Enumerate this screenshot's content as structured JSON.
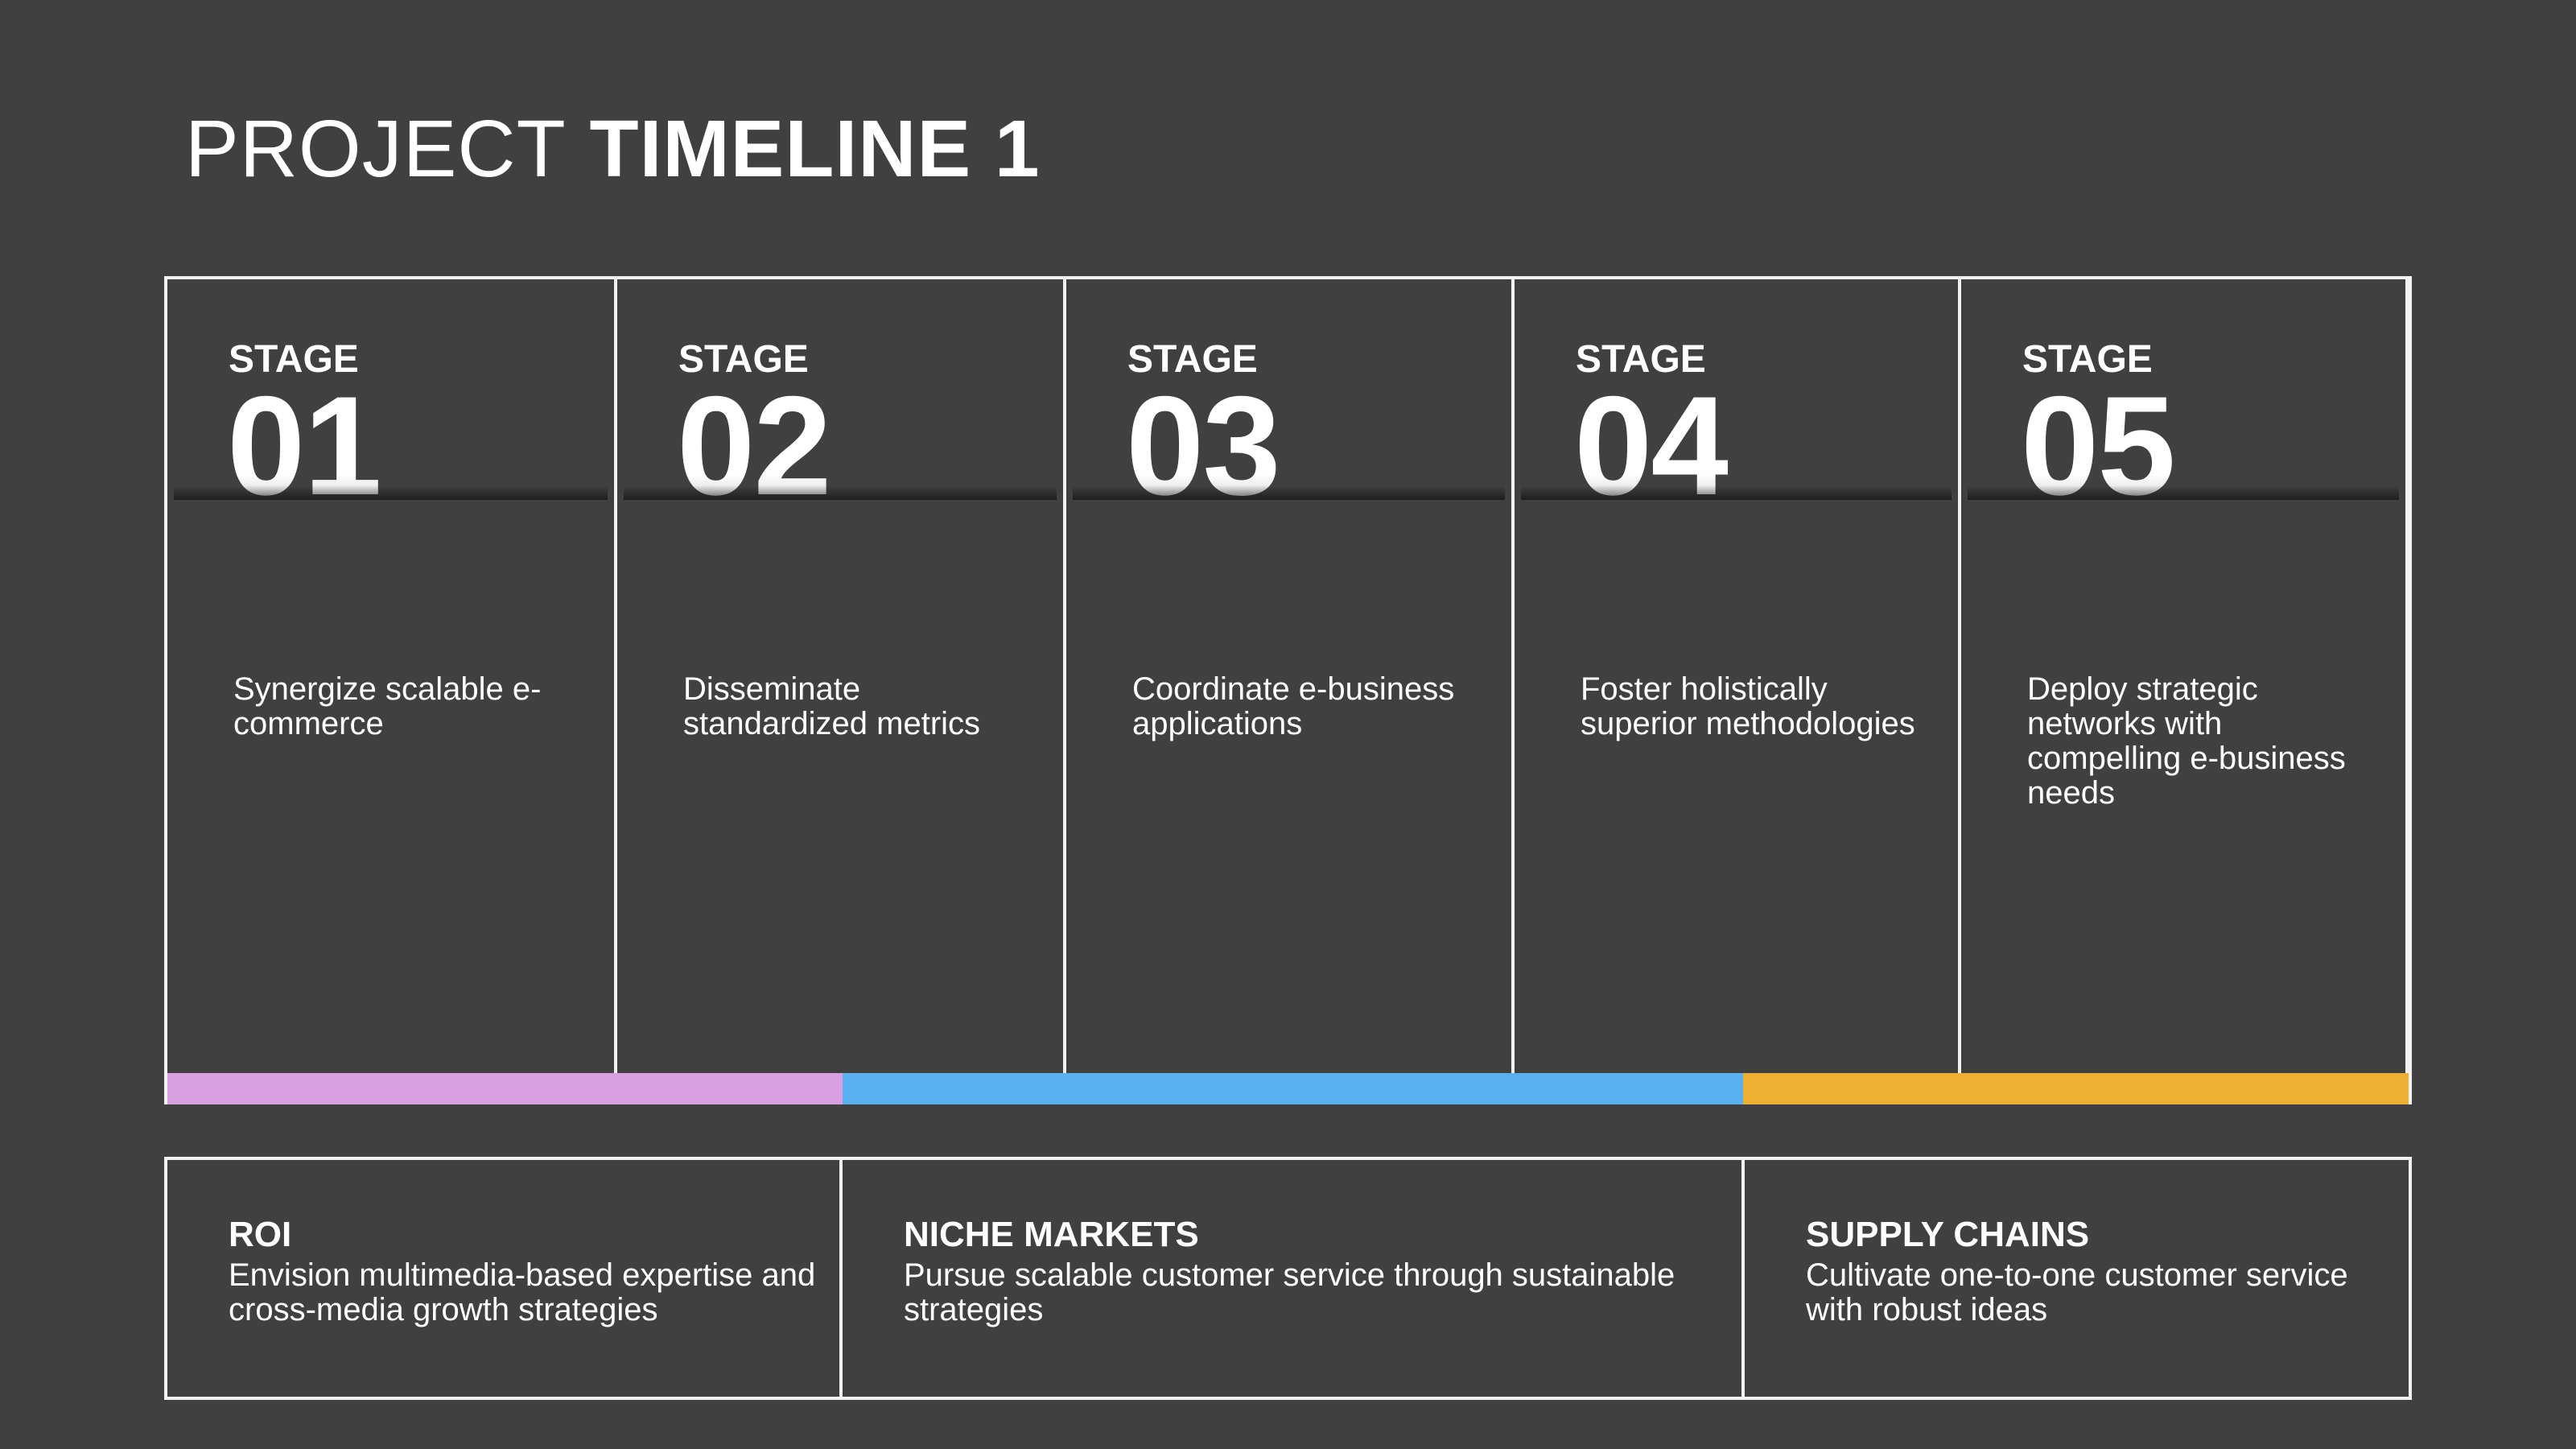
{
  "title": {
    "light": "PROJECT",
    "bold": "TIMELINE 1"
  },
  "stages": [
    {
      "label": "STAGE",
      "number": "01",
      "description": "Synergize scalable e-commerce"
    },
    {
      "label": "STAGE",
      "number": "02",
      "description": "Disseminate standardized metrics"
    },
    {
      "label": "STAGE",
      "number": "03",
      "description": "Coordinate e-business applications"
    },
    {
      "label": "STAGE",
      "number": "04",
      "description": "Foster holistically superior methodologies"
    },
    {
      "label": "STAGE",
      "number": "05",
      "description": "Deploy strategic networks with compelling e-business needs"
    }
  ],
  "colors": {
    "background": "#404040",
    "roi": "#d8a0e0",
    "niche_markets": "#5bb0f0",
    "supply_chains": "#eeb033"
  },
  "notes": [
    {
      "title": "ROI",
      "body": "Envision multimedia-based expertise and cross-media growth strategies"
    },
    {
      "title": "NICHE MARKETS",
      "body": "Pursue scalable customer service through sustainable strategies"
    },
    {
      "title": "SUPPLY CHAINS",
      "body": "Cultivate one-to-one customer service with robust ideas"
    }
  ]
}
